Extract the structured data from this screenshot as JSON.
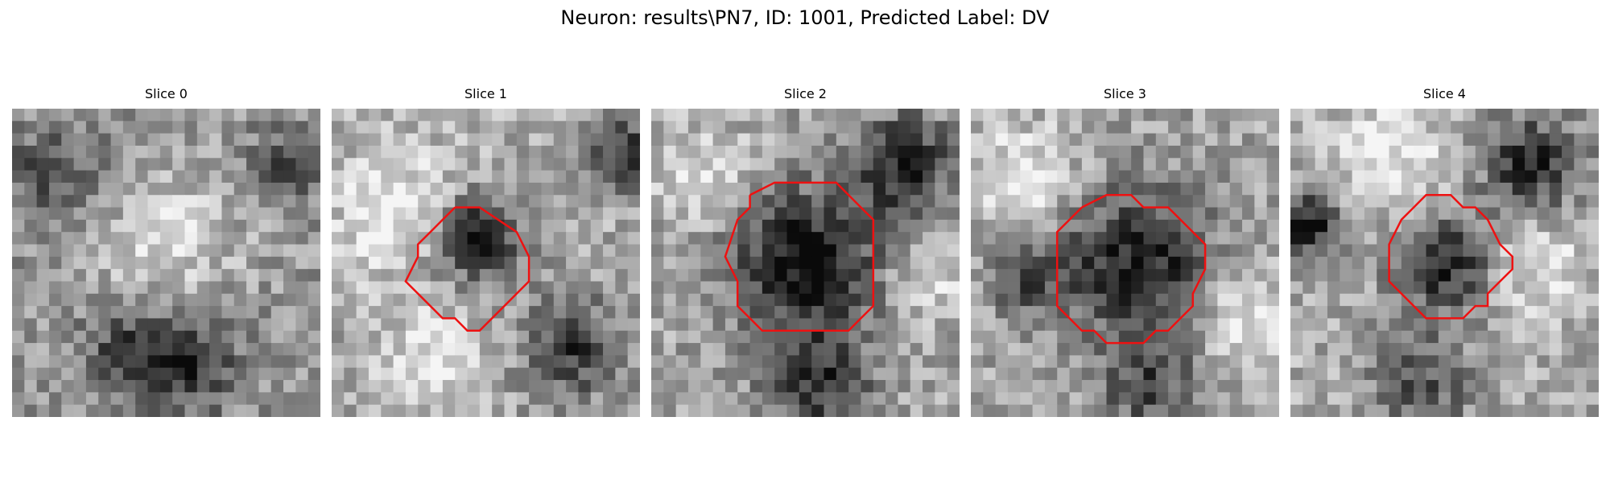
{
  "figure": {
    "title": "Neuron: results\\PN7, ID: 1001, Predicted Label: DV"
  },
  "colors": {
    "background": "#ffffff",
    "contour": "#ee1111"
  },
  "slices": [
    {
      "label": "Slice 0",
      "has_contour": false
    },
    {
      "label": "Slice 1",
      "has_contour": true
    },
    {
      "label": "Slice 2",
      "has_contour": true
    },
    {
      "label": "Slice 3",
      "has_contour": true
    },
    {
      "label": "Slice 4",
      "has_contour": true
    }
  ]
}
